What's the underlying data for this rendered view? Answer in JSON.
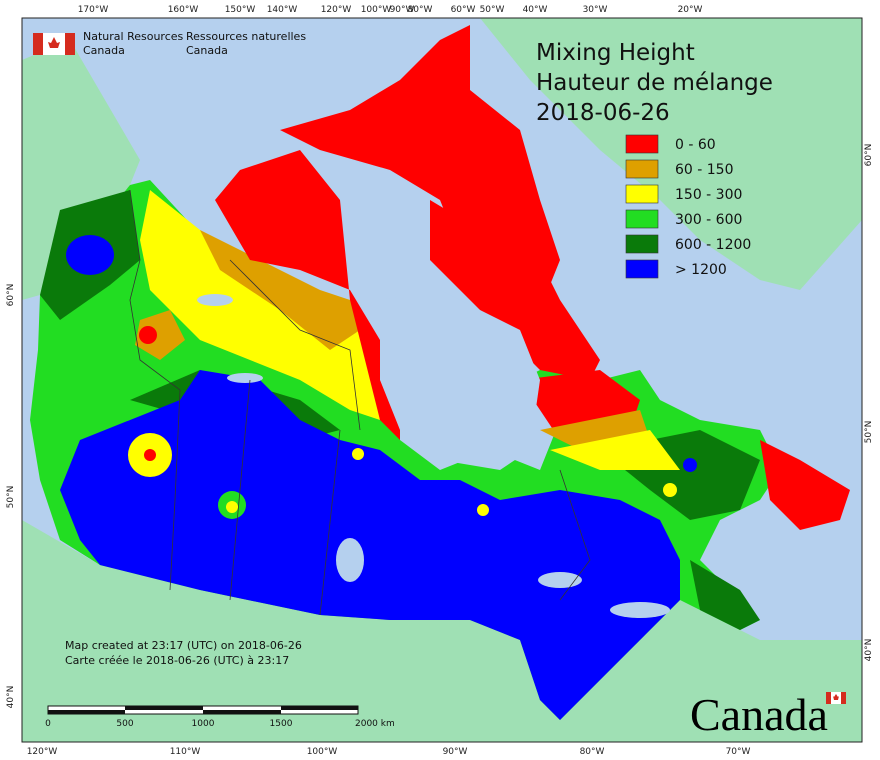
{
  "header": {
    "en_line1": "Natural Resources",
    "en_line2": "Canada",
    "fr_line1": "Ressources naturelles",
    "fr_line2": "Canada"
  },
  "title": {
    "lines": [
      "Mixing Height",
      "Hauteur de mélange",
      "2018-06-26"
    ]
  },
  "legend": {
    "items": [
      {
        "label": "0 - 60",
        "color": "#ff0000"
      },
      {
        "label": "60 - 150",
        "color": "#dea000"
      },
      {
        "label": "150 - 300",
        "color": "#ffff00"
      },
      {
        "label": "300 - 600",
        "color": "#22dd22"
      },
      {
        "label": "600 - 1200",
        "color": "#0a7a0a"
      },
      {
        "label": "> 1200",
        "color": "#0000ff"
      }
    ]
  },
  "graticule": {
    "top": [
      "170°W",
      "160°W",
      "150°W",
      "140°W",
      "120°W",
      "100°W",
      "90°W",
      "80°W",
      "60°W",
      "50°W",
      "40°W",
      "30°W",
      "20°W"
    ],
    "bottom": [
      "120°W",
      "110°W",
      "100°W",
      "90°W",
      "80°W",
      "70°W"
    ],
    "left": [
      "60°N",
      "50°N",
      "40°N"
    ],
    "right": [
      "60°N",
      "50°N",
      "40°N"
    ]
  },
  "credit": {
    "lines": [
      "Map created at 23:17 (UTC) on 2018-06-26",
      "Carte créée le 2018-06-26 (UTC) à 23:17"
    ]
  },
  "scale_bar": {
    "labels": [
      "0",
      "500",
      "1000",
      "1500",
      "2000 km"
    ]
  },
  "wordmark": "Canada"
}
